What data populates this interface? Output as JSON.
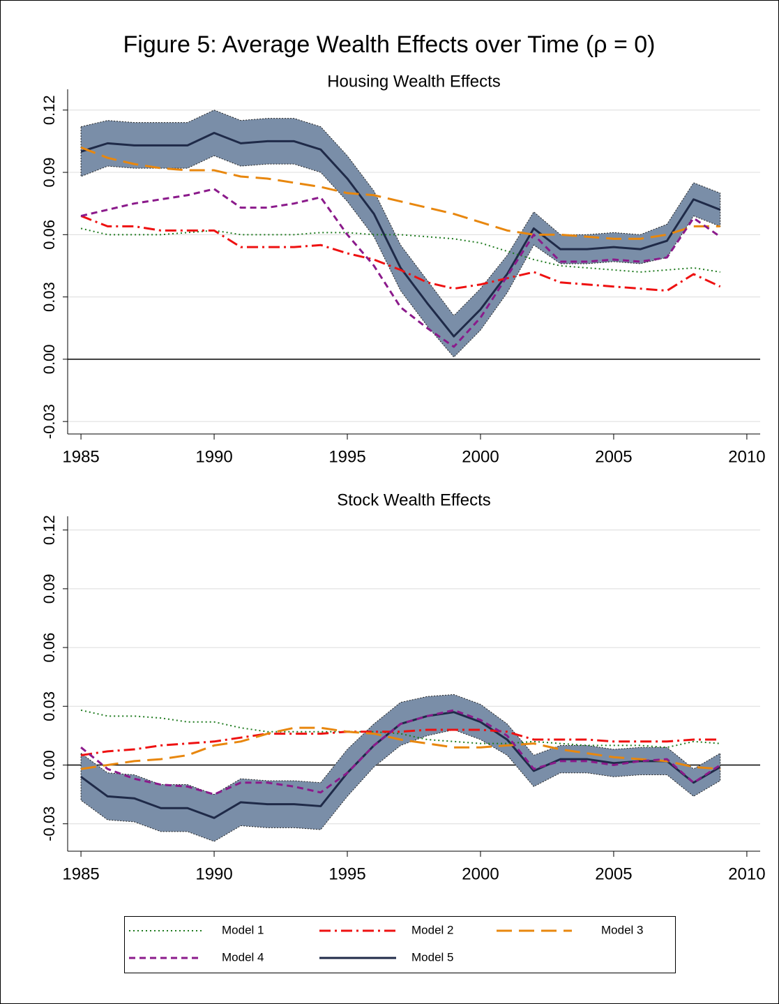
{
  "title": "Figure 5: Average Wealth Effects over Time (ρ = 0)",
  "chart_data": [
    {
      "type": "line",
      "title": "Housing Wealth Effects",
      "x": [
        1985,
        1986,
        1987,
        1988,
        1989,
        1990,
        1991,
        1992,
        1993,
        1994,
        1995,
        1996,
        1997,
        1998,
        1999,
        2000,
        2001,
        2002,
        2003,
        2004,
        2005,
        2006,
        2007,
        2008,
        2009
      ],
      "xlim": [
        1984.5,
        2010.5
      ],
      "xticks": [
        1985,
        1990,
        1995,
        2000,
        2005,
        2010
      ],
      "ylim": [
        -0.036,
        0.13
      ],
      "yticks": [
        -0.03,
        {
          "value": 0,
          "label": "0.00"
        },
        0.03,
        0.06,
        0.09,
        0.12
      ],
      "grid": true,
      "zero_line": true,
      "series": [
        {
          "name": "Model 1",
          "color": "#1e7a1e",
          "style": "dotted",
          "values": [
            0.063,
            0.06,
            0.06,
            0.06,
            0.061,
            0.062,
            0.06,
            0.06,
            0.06,
            0.061,
            0.061,
            0.06,
            0.06,
            0.059,
            0.058,
            0.056,
            0.052,
            0.048,
            0.045,
            0.044,
            0.043,
            0.042,
            0.043,
            0.044,
            0.042
          ]
        },
        {
          "name": "Model 2",
          "color": "#ee1111",
          "style": "dashdot",
          "values": [
            0.069,
            0.064,
            0.064,
            0.062,
            0.062,
            0.062,
            0.054,
            0.054,
            0.054,
            0.055,
            0.051,
            0.048,
            0.043,
            0.037,
            0.034,
            0.036,
            0.039,
            0.042,
            0.037,
            0.036,
            0.035,
            0.034,
            0.033,
            0.041,
            0.035
          ]
        },
        {
          "name": "Model 3",
          "color": "#e8870e",
          "style": "longdash",
          "values": [
            0.102,
            0.097,
            0.094,
            0.092,
            0.091,
            0.091,
            0.088,
            0.087,
            0.085,
            0.083,
            0.08,
            0.079,
            0.076,
            0.073,
            0.07,
            0.066,
            0.062,
            0.06,
            0.06,
            0.059,
            0.058,
            0.058,
            0.06,
            0.064,
            0.064
          ]
        },
        {
          "name": "Model 4",
          "color": "#8b1a8b",
          "style": "dash",
          "values": [
            0.069,
            0.072,
            0.075,
            0.077,
            0.079,
            0.082,
            0.073,
            0.073,
            0.075,
            0.078,
            0.06,
            0.045,
            0.025,
            0.015,
            0.006,
            0.02,
            0.04,
            0.06,
            0.047,
            0.047,
            0.048,
            0.047,
            0.049,
            0.068,
            0.059
          ]
        },
        {
          "name": "Model 5",
          "color": "#1f2a48",
          "style": "solid",
          "band_color": "#7a8ea8",
          "values": [
            0.1,
            0.104,
            0.103,
            0.103,
            0.103,
            0.109,
            0.104,
            0.105,
            0.105,
            0.101,
            0.087,
            0.07,
            0.044,
            0.027,
            0.011,
            0.024,
            0.041,
            0.063,
            0.053,
            0.053,
            0.054,
            0.053,
            0.057,
            0.077,
            0.072
          ],
          "upper": [
            0.112,
            0.115,
            0.114,
            0.114,
            0.114,
            0.12,
            0.115,
            0.116,
            0.116,
            0.112,
            0.098,
            0.081,
            0.055,
            0.038,
            0.021,
            0.034,
            0.05,
            0.071,
            0.06,
            0.06,
            0.061,
            0.06,
            0.065,
            0.085,
            0.08
          ],
          "lower": [
            0.088,
            0.093,
            0.092,
            0.092,
            0.092,
            0.098,
            0.093,
            0.094,
            0.094,
            0.09,
            0.076,
            0.059,
            0.033,
            0.016,
            0.001,
            0.014,
            0.032,
            0.055,
            0.046,
            0.046,
            0.047,
            0.046,
            0.049,
            0.069,
            0.064
          ]
        }
      ]
    },
    {
      "type": "line",
      "title": "Stock Wealth Effects",
      "x": [
        1985,
        1986,
        1987,
        1988,
        1989,
        1990,
        1991,
        1992,
        1993,
        1994,
        1995,
        1996,
        1997,
        1998,
        1999,
        2000,
        2001,
        2002,
        2003,
        2004,
        2005,
        2006,
        2007,
        2008,
        2009
      ],
      "xlim": [
        1984.5,
        2010.5
      ],
      "xticks": [
        1985,
        1990,
        1995,
        2000,
        2005,
        2010
      ],
      "ylim": [
        -0.044,
        0.127
      ],
      "yticks": [
        -0.03,
        {
          "value": 0,
          "label": "0.00"
        },
        0.03,
        0.06,
        0.09,
        0.12
      ],
      "grid": true,
      "zero_line": true,
      "series": [
        {
          "color": "#1e7a1e",
          "style": "dotted",
          "values": [
            0.028,
            0.025,
            0.025,
            0.024,
            0.022,
            0.022,
            0.019,
            0.017,
            0.017,
            0.017,
            0.017,
            0.017,
            0.016,
            0.013,
            0.012,
            0.011,
            0.011,
            0.012,
            0.011,
            0.01,
            0.01,
            0.01,
            0.009,
            0.012,
            0.011
          ]
        },
        {
          "color": "#ee1111",
          "style": "dashdot",
          "values": [
            0.005,
            0.007,
            0.008,
            0.01,
            0.011,
            0.012,
            0.014,
            0.016,
            0.016,
            0.016,
            0.017,
            0.017,
            0.017,
            0.018,
            0.018,
            0.018,
            0.017,
            0.013,
            0.013,
            0.013,
            0.012,
            0.012,
            0.012,
            0.013,
            0.013
          ]
        },
        {
          "color": "#e8870e",
          "style": "longdash",
          "values": [
            -0.002,
            0.0,
            0.002,
            0.003,
            0.005,
            0.01,
            0.012,
            0.016,
            0.019,
            0.019,
            0.017,
            0.016,
            0.013,
            0.011,
            0.009,
            0.009,
            0.01,
            0.011,
            0.008,
            0.006,
            0.004,
            0.003,
            0.002,
            -0.001,
            -0.002
          ]
        },
        {
          "color": "#8b1a8b",
          "style": "dash",
          "values": [
            0.009,
            -0.002,
            -0.007,
            -0.01,
            -0.011,
            -0.015,
            -0.009,
            -0.009,
            -0.011,
            -0.014,
            -0.004,
            0.01,
            0.021,
            0.025,
            0.028,
            0.023,
            0.015,
            -0.002,
            0.002,
            0.002,
            0.0,
            0.002,
            0.003,
            -0.009,
            0.0
          ]
        },
        {
          "color": "#1f2a48",
          "style": "solid",
          "band_color": "#7a8ea8",
          "values": [
            -0.006,
            -0.016,
            -0.017,
            -0.022,
            -0.022,
            -0.027,
            -0.019,
            -0.02,
            -0.02,
            -0.021,
            -0.004,
            0.01,
            0.021,
            0.025,
            0.027,
            0.022,
            0.013,
            -0.003,
            0.003,
            0.003,
            0.001,
            0.002,
            0.002,
            -0.009,
            -0.001
          ],
          "upper": [
            0.006,
            -0.004,
            -0.005,
            -0.01,
            -0.01,
            -0.015,
            -0.007,
            -0.008,
            -0.008,
            -0.009,
            0.008,
            0.021,
            0.032,
            0.035,
            0.036,
            0.031,
            0.021,
            0.005,
            0.01,
            0.01,
            0.008,
            0.009,
            0.009,
            -0.002,
            0.006
          ],
          "lower": [
            -0.018,
            -0.028,
            -0.029,
            -0.034,
            -0.034,
            -0.039,
            -0.031,
            -0.032,
            -0.032,
            -0.033,
            -0.016,
            -0.001,
            0.01,
            0.015,
            0.018,
            0.013,
            0.005,
            -0.011,
            -0.004,
            -0.004,
            -0.006,
            -0.005,
            -0.005,
            -0.016,
            -0.008
          ]
        }
      ]
    }
  ]
}
